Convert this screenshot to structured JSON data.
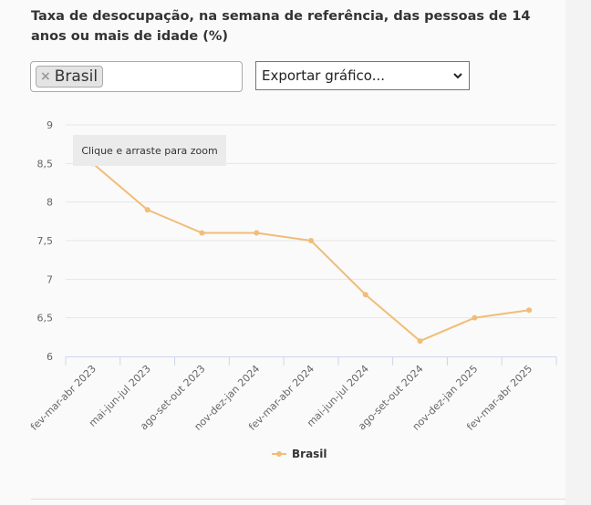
{
  "title": "Taxa de desocupação, na semana de referência, das pessoas de 14 anos ou mais de idade (%)",
  "filter": {
    "tag_label": "Brasil",
    "remove_symbol": "×"
  },
  "export_select": {
    "selected": "Exportar gráfico..."
  },
  "zoom_hint": "Clique e arraste para zoom",
  "colors": {
    "series": "#f0bd79",
    "grid": "#e6e6e6",
    "axis": "#ccd6eb",
    "text": "#666666"
  },
  "chart_data": {
    "type": "line",
    "title": "Taxa de desocupação, na semana de referência, das pessoas de 14 anos ou mais de idade (%)",
    "categories": [
      "fev-mar-abr 2023",
      "mai-jun-jul 2023",
      "ago-set-out 2023",
      "nov-dez-jan 2024",
      "fev-mar-abr 2024",
      "mai-jun-jul 2024",
      "ago-set-out 2024",
      "nov-dez-jan 2025",
      "fev-mar-abr 2025"
    ],
    "series": [
      {
        "name": "Brasil",
        "values": [
          8.5,
          7.9,
          7.6,
          7.6,
          7.5,
          6.8,
          6.2,
          6.5,
          6.6
        ]
      }
    ],
    "y_ticks": [
      "6",
      "6,5",
      "7",
      "7,5",
      "8",
      "8,5",
      "9"
    ],
    "ylim": [
      6,
      9
    ],
    "grid": true,
    "legend": "bottom-center"
  }
}
